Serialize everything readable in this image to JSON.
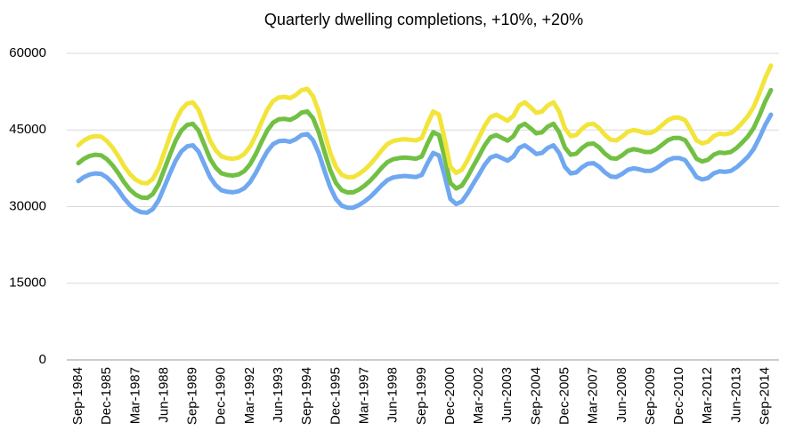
{
  "chart_data": {
    "type": "line",
    "title": "Quarterly dwelling completions, +10%, +20%",
    "categories": [
      "Sep-1984",
      null,
      null,
      null,
      null,
      "Dec-1985",
      null,
      null,
      null,
      null,
      "Mar-1987",
      null,
      null,
      null,
      null,
      "Jun-1988",
      null,
      null,
      null,
      null,
      "Sep-1989",
      null,
      null,
      null,
      null,
      "Dec-1990",
      null,
      null,
      null,
      null,
      "Mar-1992",
      null,
      null,
      null,
      null,
      "Jun-1993",
      null,
      null,
      null,
      null,
      "Sep-1994",
      null,
      null,
      null,
      null,
      "Dec-1995",
      null,
      null,
      null,
      null,
      "Mar-1997",
      null,
      null,
      null,
      null,
      "Jun-1998",
      null,
      null,
      null,
      null,
      "Sep-1999",
      null,
      null,
      null,
      null,
      "Dec-2000",
      null,
      null,
      null,
      null,
      "Mar-2002",
      null,
      null,
      null,
      null,
      "Jun-2003",
      null,
      null,
      null,
      null,
      "Sep-2004",
      null,
      null,
      null,
      null,
      "Dec-2005",
      null,
      null,
      null,
      null,
      "Mar-2007",
      null,
      null,
      null,
      null,
      "Jun-2008",
      null,
      null,
      null,
      null,
      "Sep-2009",
      null,
      null,
      null,
      null,
      "Dec-2010",
      null,
      null,
      null,
      null,
      "Mar-2012",
      null,
      null,
      null,
      null,
      "Jun-2013",
      null,
      null,
      null,
      null,
      "Sep-2014",
      null
    ],
    "series": [
      {
        "color": "#6fa8f0",
        "values": [
          35000,
          35800,
          36300,
          36500,
          36400,
          35700,
          34600,
          33200,
          31600,
          30300,
          29400,
          28900,
          28800,
          29500,
          31200,
          33800,
          36500,
          39000,
          40800,
          41800,
          42000,
          40800,
          38300,
          35800,
          34200,
          33200,
          32900,
          32800,
          33000,
          33600,
          34800,
          36600,
          38800,
          40800,
          42200,
          42800,
          42900,
          42700,
          43200,
          44000,
          44200,
          43000,
          40500,
          37000,
          33800,
          31500,
          30200,
          29800,
          29800,
          30300,
          31000,
          31900,
          33000,
          34200,
          35200,
          35700,
          35900,
          36000,
          35900,
          35800,
          36200,
          38500,
          40500,
          40000,
          36000,
          31500,
          30500,
          31000,
          32600,
          34500,
          36300,
          38200,
          39600,
          40000,
          39500,
          39000,
          39800,
          41500,
          42000,
          41200,
          40300,
          40500,
          41500,
          42000,
          40500,
          37800,
          36500,
          36700,
          37700,
          38400,
          38500,
          37800,
          36700,
          35900,
          35800,
          36400,
          37200,
          37500,
          37300,
          37000,
          37000,
          37500,
          38300,
          39100,
          39500,
          39500,
          39100,
          37500,
          35800,
          35300,
          35600,
          36500,
          36900,
          36800,
          37000,
          37700,
          38700,
          39800,
          41300,
          43500,
          46000,
          48000
        ]
      },
      {
        "color": "#72c043",
        "values": [
          38500,
          39380,
          39930,
          40150,
          40040,
          39270,
          38060,
          36520,
          34760,
          33330,
          32340,
          31790,
          31680,
          32450,
          34320,
          37180,
          40150,
          42900,
          44880,
          45980,
          46200,
          44880,
          42130,
          39380,
          37620,
          36520,
          36190,
          36080,
          36300,
          36960,
          38280,
          40260,
          42680,
          44880,
          46420,
          47080,
          47190,
          46970,
          47520,
          48400,
          48620,
          47300,
          44550,
          40700,
          37180,
          34650,
          33220,
          32780,
          32780,
          33330,
          34100,
          35090,
          36300,
          37620,
          38720,
          39270,
          39490,
          39600,
          39490,
          39380,
          39820,
          42350,
          44550,
          44000,
          39600,
          34650,
          33550,
          34100,
          35860,
          37950,
          39930,
          42020,
          43560,
          44000,
          43450,
          42900,
          43780,
          45650,
          46200,
          45320,
          44330,
          44550,
          45650,
          46200,
          44550,
          41580,
          40150,
          40370,
          41470,
          42240,
          42350,
          41580,
          40370,
          39490,
          39380,
          40040,
          40920,
          41250,
          41030,
          40700,
          40700,
          41250,
          42130,
          43010,
          43450,
          43450,
          43010,
          41250,
          39380,
          38830,
          39160,
          40150,
          40590,
          40480,
          40700,
          41470,
          42570,
          43780,
          45430,
          47850,
          50600,
          52800
        ]
      },
      {
        "color": "#f2e43a",
        "values": [
          42000,
          42960,
          43560,
          43800,
          43680,
          42840,
          41520,
          39840,
          37920,
          36360,
          35280,
          34680,
          34560,
          35400,
          37440,
          40560,
          43800,
          46800,
          48960,
          50160,
          50400,
          48960,
          45960,
          42960,
          41040,
          39840,
          39480,
          39360,
          39600,
          40320,
          41760,
          43920,
          46560,
          48960,
          50640,
          51360,
          51480,
          51240,
          51840,
          52800,
          53040,
          51600,
          48600,
          44400,
          40560,
          37800,
          36240,
          35760,
          35760,
          36360,
          37200,
          38280,
          39600,
          41040,
          42240,
          42840,
          43080,
          43200,
          43080,
          42960,
          43440,
          46200,
          48600,
          48000,
          43200,
          37800,
          36600,
          37200,
          39120,
          41400,
          43560,
          45840,
          47520,
          48000,
          47400,
          46800,
          47760,
          49800,
          50400,
          49440,
          48360,
          48600,
          49800,
          50400,
          48600,
          45360,
          43800,
          44040,
          45240,
          46080,
          46200,
          45360,
          44040,
          43080,
          42960,
          43680,
          44640,
          45000,
          44760,
          44400,
          44400,
          45000,
          45960,
          46920,
          47400,
          47400,
          46920,
          45000,
          42960,
          42360,
          42720,
          43800,
          44280,
          44160,
          44400,
          45240,
          46440,
          47760,
          49560,
          52200,
          55200,
          57600
        ]
      }
    ],
    "ylim": [
      0,
      60000
    ],
    "yticks": [
      0,
      15000,
      30000,
      45000,
      60000
    ],
    "grid": true
  }
}
